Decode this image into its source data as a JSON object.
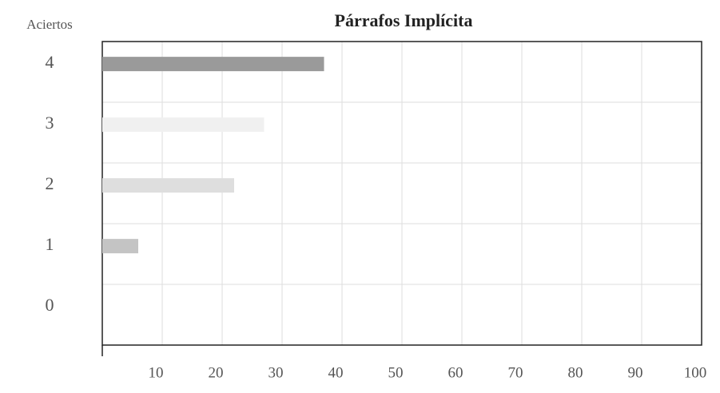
{
  "chart_data": {
    "type": "barh",
    "title": "Párrafos Implícita",
    "ylabel": "Aciertos",
    "categories": [
      "4",
      "3",
      "2",
      "1",
      "0"
    ],
    "values": [
      37,
      27,
      22,
      6,
      0
    ],
    "colors": [
      "#9a9a9a",
      "#f0f0f0",
      "#dedede",
      "#c4c4c4",
      "#eeeeee"
    ],
    "xlim": [
      0,
      100
    ],
    "xticks": [
      10,
      20,
      30,
      40,
      50,
      60,
      70,
      80,
      90,
      100
    ],
    "grid": true
  }
}
